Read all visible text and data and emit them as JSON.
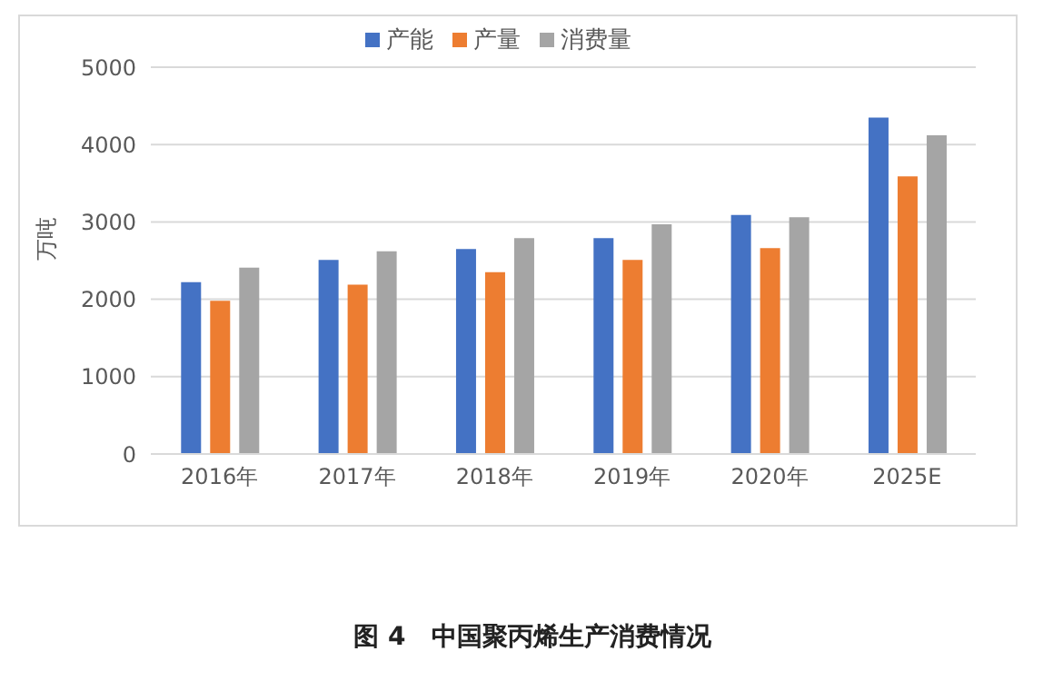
{
  "chart_data": {
    "type": "bar",
    "title": "图 4　中国聚丙烯生产消费情况",
    "ylabel": "万吨",
    "categories": [
      "2016年",
      "2017年",
      "2018年",
      "2019年",
      "2020年",
      "2025E"
    ],
    "series": [
      {
        "name": "产能",
        "color": "#4472c4",
        "values": [
          2220,
          2510,
          2650,
          2790,
          3090,
          4350
        ]
      },
      {
        "name": "产量",
        "color": "#ed7d31",
        "values": [
          1980,
          2190,
          2350,
          2510,
          2660,
          3590
        ]
      },
      {
        "name": "消费量",
        "color": "#a5a5a5",
        "values": [
          2410,
          2620,
          2790,
          2970,
          3060,
          4120
        ]
      }
    ],
    "ylim": [
      0,
      5000
    ],
    "yticks": [
      0,
      1000,
      2000,
      3000,
      4000,
      5000
    ],
    "grid": "y",
    "legend": "top"
  }
}
